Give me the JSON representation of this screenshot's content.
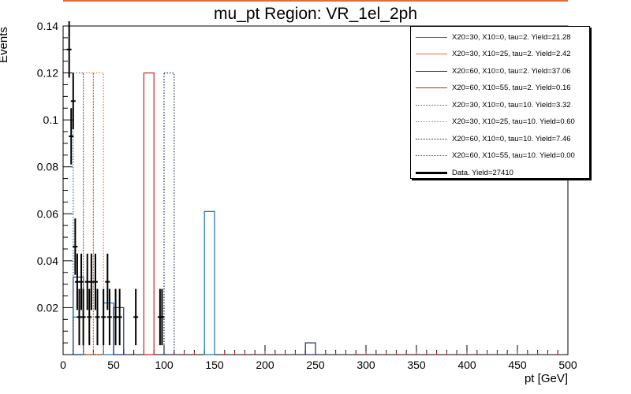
{
  "chart_data": {
    "type": "histogram",
    "title": "mu_pt Region: VR_1el_2ph",
    "xlabel": "pt [GeV]",
    "ylabel": "Events",
    "xlim": [
      0,
      500
    ],
    "ylim": [
      0,
      0.14
    ],
    "xticks": [
      "0",
      "50",
      "100",
      "150",
      "200",
      "250",
      "300",
      "350",
      "400",
      "450",
      "500"
    ],
    "yticks": [
      "0.02",
      "0.04",
      "0.06",
      "0.08",
      "0.1",
      "0.12",
      "0.14"
    ],
    "bin_width": 10,
    "series": [
      {
        "name": "X20=30, X10=0, tau=2. Yield=21.28",
        "color": "#1f6fb4",
        "style": "solid",
        "bins": [
          [
            10,
            0.016
          ],
          [
            40,
            0.022
          ],
          [
            140,
            0.061
          ]
        ]
      },
      {
        "name": "X20=30, X10=25, tau=2. Yield=2.42",
        "color": "#e36c36",
        "style": "solid",
        "bins": []
      },
      {
        "name": "X20=60, X10=0, tau=2. Yield=37.06",
        "color": "#1b2a6b",
        "style": "solid",
        "bins": [
          [
            10,
            0.033
          ],
          [
            50,
            0.02
          ],
          [
            240,
            0.005
          ]
        ]
      },
      {
        "name": "X20=60, X10=55, tau=2. Yield=0.16",
        "color": "#cc2222",
        "style": "solid",
        "bins": [
          [
            80,
            0.12
          ]
        ]
      },
      {
        "name": "X20=30, X10=0, tau=10. Yield=3.32",
        "color": "#1f6fb4",
        "style": "dotted",
        "bins": [
          [
            10,
            0.12
          ]
        ]
      },
      {
        "name": "X20=30, X10=25, tau=10. Yield=0.60",
        "color": "#e36c36",
        "style": "dotted",
        "bins": [
          [
            20,
            0.12
          ],
          [
            30,
            0.12
          ]
        ]
      },
      {
        "name": "X20=60, X10=0, tau=10. Yield=7.46",
        "color": "#1b2a6b",
        "style": "dotted",
        "bins": [
          [
            100,
            0.12
          ]
        ]
      },
      {
        "name": "X20=60, X10=55, tau=10. Yield=0.00",
        "color": "#cc2222",
        "style": "dotted",
        "bins": []
      },
      {
        "name": "Data. Yield=27410",
        "color": "#000000",
        "style": "points",
        "points": [
          [
            6,
            0.13,
            0.012
          ],
          [
            8,
            0.093,
            0.012
          ],
          [
            10,
            0.108,
            0.012
          ],
          [
            12,
            0.046,
            0.012
          ],
          [
            14,
            0.031,
            0.012
          ],
          [
            16,
            0.016,
            0.012
          ],
          [
            18,
            0.031,
            0.012
          ],
          [
            20,
            0.016,
            0.012
          ],
          [
            24,
            0.031,
            0.012
          ],
          [
            26,
            0.016,
            0.012
          ],
          [
            28,
            0.031,
            0.012
          ],
          [
            32,
            0.031,
            0.012
          ],
          [
            34,
            0.016,
            0.012
          ],
          [
            40,
            0.016,
            0.012
          ],
          [
            44,
            0.031,
            0.012
          ],
          [
            46,
            0.016,
            0.012
          ],
          [
            52,
            0.016,
            0.012
          ],
          [
            56,
            0.016,
            0.012
          ],
          [
            72,
            0.016,
            0.012
          ],
          [
            96,
            0.016,
            0.012
          ],
          [
            98,
            0.016,
            0.012
          ]
        ]
      }
    ],
    "legend": {
      "position": "top-right"
    }
  }
}
